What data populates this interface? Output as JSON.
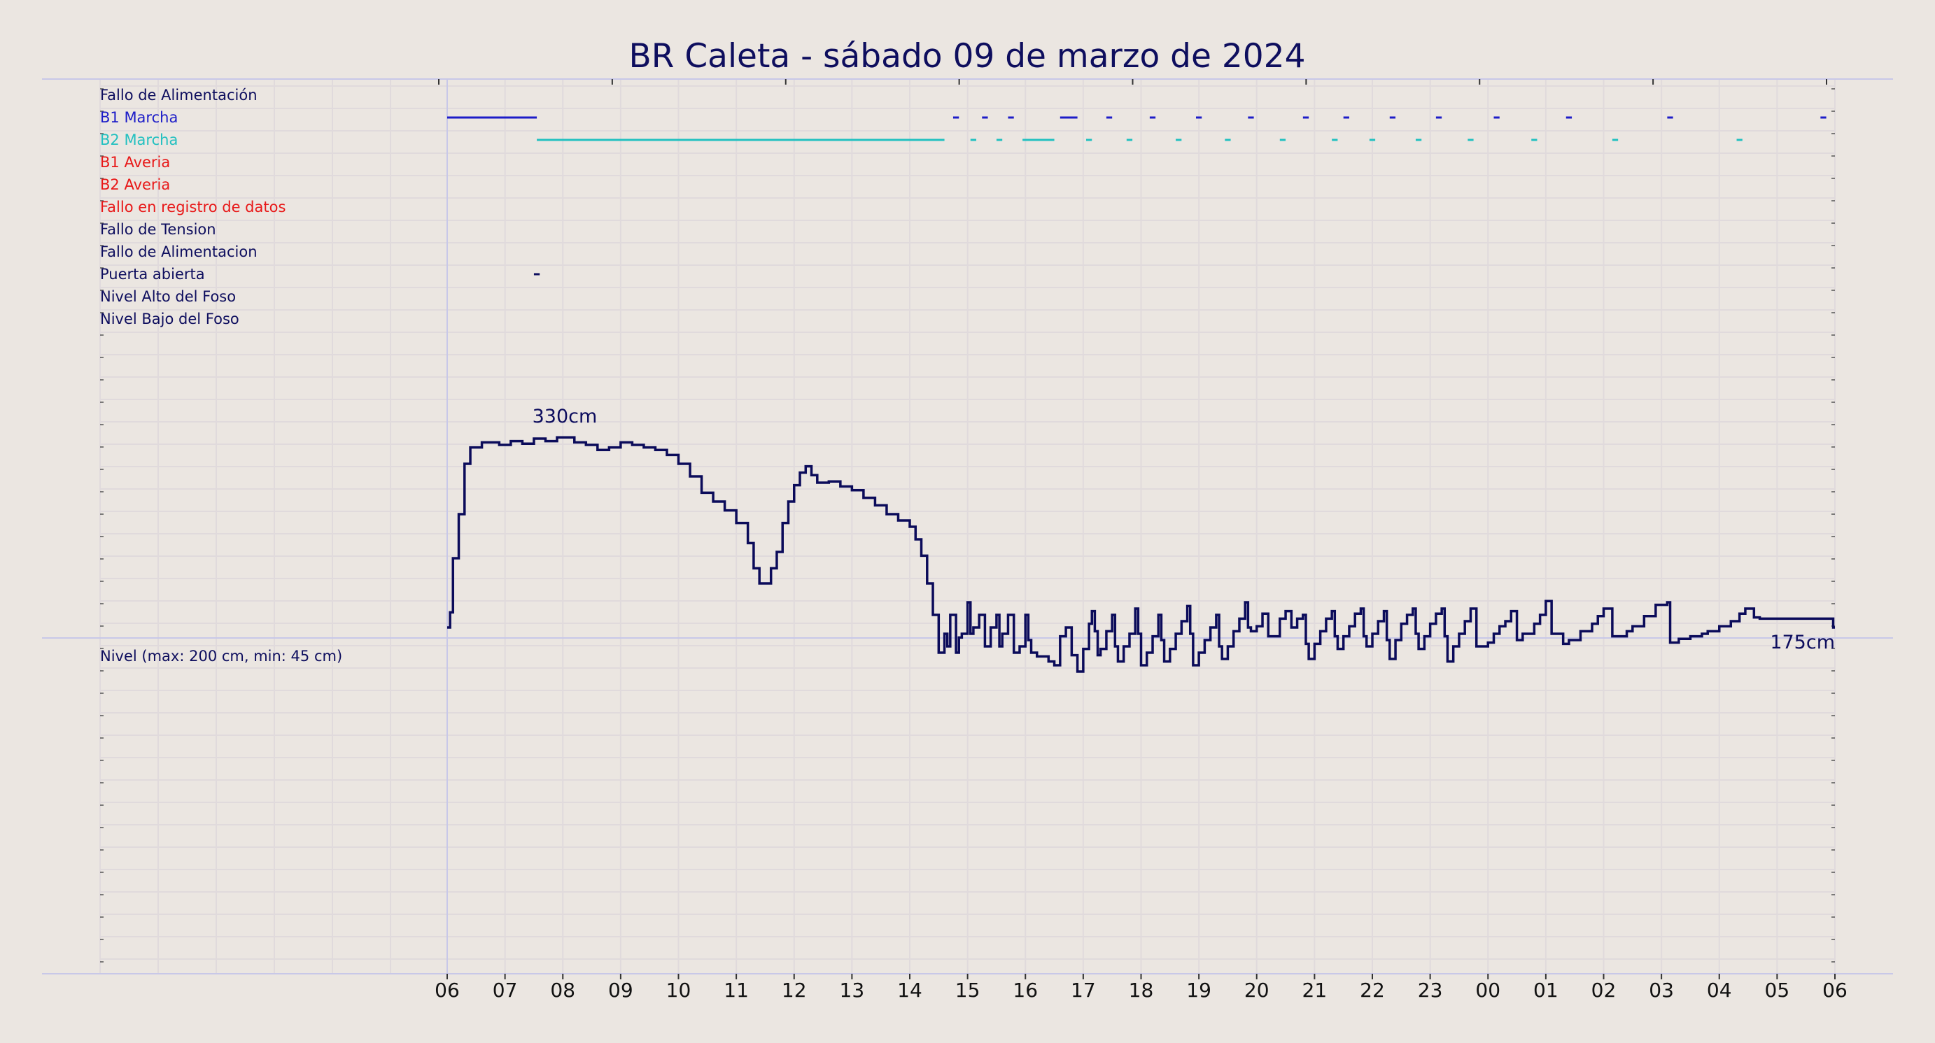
{
  "chart_data": {
    "type": "line",
    "title": "BR Caleta   -   sábado 09 de marzo de 2024",
    "x_ticks": [
      "06",
      "07",
      "08",
      "09",
      "10",
      "11",
      "12",
      "13",
      "14",
      "15",
      "16",
      "17",
      "18",
      "19",
      "20",
      "21",
      "22",
      "23",
      "00",
      "01",
      "02",
      "03",
      "04",
      "05",
      "06"
    ],
    "grid": true,
    "colors": {
      "background": "#ebe6e1",
      "title": "#0e0e5e",
      "b1": "#1c1cc8",
      "b2": "#22c0c0",
      "alarm": "#e81818",
      "level": "#0b0b5a",
      "grid": "#e0dadc",
      "frame": "#c8c8e8"
    },
    "event_rows": [
      {
        "label": "Fallo de Alimentación",
        "color": "#0e0e5e",
        "segments": []
      },
      {
        "label": "B1 Marcha",
        "color": "#1c1cc8",
        "segments": [
          [
            0.0,
            1.55
          ],
          [
            8.75,
            8.85
          ],
          [
            9.25,
            9.35
          ],
          [
            9.7,
            9.8
          ],
          [
            10.6,
            10.9
          ],
          [
            11.4,
            11.5
          ],
          [
            12.15,
            12.25
          ],
          [
            12.95,
            13.05
          ],
          [
            13.85,
            13.95
          ],
          [
            14.8,
            14.9
          ],
          [
            15.5,
            15.6
          ],
          [
            16.3,
            16.4
          ],
          [
            17.1,
            17.2
          ],
          [
            18.1,
            18.2
          ],
          [
            19.35,
            19.45
          ],
          [
            21.1,
            21.2
          ],
          [
            23.75,
            23.85
          ]
        ]
      },
      {
        "label": "B2 Marcha",
        "color": "#22c0c0",
        "segments": [
          [
            1.55,
            8.6
          ],
          [
            9.05,
            9.15
          ],
          [
            9.5,
            9.6
          ],
          [
            9.95,
            10.5
          ],
          [
            11.05,
            11.15
          ],
          [
            11.75,
            11.85
          ],
          [
            12.6,
            12.7
          ],
          [
            13.45,
            13.55
          ],
          [
            14.4,
            14.5
          ],
          [
            15.3,
            15.4
          ],
          [
            15.95,
            16.05
          ],
          [
            16.75,
            16.85
          ],
          [
            17.65,
            17.75
          ],
          [
            18.75,
            18.85
          ],
          [
            20.15,
            20.25
          ],
          [
            22.3,
            22.4
          ]
        ]
      },
      {
        "label": "B1 Averia",
        "color": "#e81818",
        "segments": []
      },
      {
        "label": "B2 Averia",
        "color": "#e81818",
        "segments": []
      },
      {
        "label": "Fallo en registro de datos",
        "color": "#e81818",
        "segments": []
      },
      {
        "label": "Fallo de Tension",
        "color": "#0e0e5e",
        "segments": []
      },
      {
        "label": "Fallo de Alimentacion",
        "color": "#0e0e5e",
        "segments": []
      },
      {
        "label": "Puerta abierta",
        "color": "#0e0e5e",
        "segments": [
          [
            1.5,
            1.6
          ]
        ]
      },
      {
        "label": "Nivel Alto del Foso",
        "color": "#0e0e5e",
        "segments": []
      },
      {
        "label": "Nivel Bajo del Foso",
        "color": "#0e0e5e",
        "segments": []
      }
    ],
    "level": {
      "label": "Nivel (max: 200 cm, min: 45 cm)",
      "y_range_cm": [
        -100,
        400
      ],
      "max_annotation": "330cm",
      "max_value_cm": 330,
      "max_at_hour": 1.5,
      "last_annotation": "175cm",
      "last_value_cm": 175,
      "series": [
        [
          0.0,
          175
        ],
        [
          0.05,
          187
        ],
        [
          0.1,
          230
        ],
        [
          0.2,
          265
        ],
        [
          0.3,
          305
        ],
        [
          0.4,
          318
        ],
        [
          0.6,
          322
        ],
        [
          0.9,
          320
        ],
        [
          1.1,
          323
        ],
        [
          1.3,
          321
        ],
        [
          1.5,
          325
        ],
        [
          1.7,
          323
        ],
        [
          1.9,
          326
        ],
        [
          2.2,
          322
        ],
        [
          2.4,
          320
        ],
        [
          2.6,
          316
        ],
        [
          2.8,
          318
        ],
        [
          3.0,
          322
        ],
        [
          3.2,
          320
        ],
        [
          3.4,
          318
        ],
        [
          3.6,
          316
        ],
        [
          3.8,
          312
        ],
        [
          4.0,
          305
        ],
        [
          4.2,
          295
        ],
        [
          4.4,
          282
        ],
        [
          4.6,
          275
        ],
        [
          4.8,
          268
        ],
        [
          5.0,
          258
        ],
        [
          5.2,
          242
        ],
        [
          5.3,
          222
        ],
        [
          5.4,
          210
        ],
        [
          5.6,
          222
        ],
        [
          5.7,
          235
        ],
        [
          5.8,
          258
        ],
        [
          5.9,
          275
        ],
        [
          6.0,
          288
        ],
        [
          6.1,
          298
        ],
        [
          6.2,
          303
        ],
        [
          6.3,
          296
        ],
        [
          6.4,
          290
        ],
        [
          6.6,
          291
        ],
        [
          6.8,
          287
        ],
        [
          7.0,
          284
        ],
        [
          7.2,
          278
        ],
        [
          7.4,
          272
        ],
        [
          7.6,
          265
        ],
        [
          7.8,
          260
        ],
        [
          8.0,
          255
        ],
        [
          8.1,
          245
        ],
        [
          8.2,
          232
        ],
        [
          8.3,
          210
        ],
        [
          8.4,
          185
        ],
        [
          8.5,
          155
        ],
        [
          8.6,
          170
        ],
        [
          8.65,
          160
        ],
        [
          8.7,
          185
        ],
        [
          8.8,
          155
        ],
        [
          8.85,
          167
        ],
        [
          8.9,
          170
        ],
        [
          9.0,
          195
        ],
        [
          9.05,
          170
        ],
        [
          9.1,
          175
        ],
        [
          9.2,
          185
        ],
        [
          9.3,
          160
        ],
        [
          9.4,
          175
        ],
        [
          9.5,
          185
        ],
        [
          9.55,
          160
        ],
        [
          9.6,
          170
        ],
        [
          9.7,
          185
        ],
        [
          9.8,
          155
        ],
        [
          9.9,
          160
        ],
        [
          10.0,
          185
        ],
        [
          10.05,
          165
        ],
        [
          10.1,
          155
        ],
        [
          10.2,
          152
        ],
        [
          10.4,
          148
        ],
        [
          10.5,
          145
        ],
        [
          10.6,
          168
        ],
        [
          10.7,
          175
        ],
        [
          10.8,
          153
        ],
        [
          10.9,
          140
        ],
        [
          11.0,
          158
        ],
        [
          11.1,
          178
        ],
        [
          11.15,
          188
        ],
        [
          11.2,
          172
        ],
        [
          11.25,
          153
        ],
        [
          11.3,
          158
        ],
        [
          11.4,
          172
        ],
        [
          11.5,
          185
        ],
        [
          11.55,
          160
        ],
        [
          11.6,
          148
        ],
        [
          11.7,
          160
        ],
        [
          11.8,
          170
        ],
        [
          11.9,
          190
        ],
        [
          11.95,
          170
        ],
        [
          12.0,
          145
        ],
        [
          12.1,
          155
        ],
        [
          12.2,
          168
        ],
        [
          12.3,
          185
        ],
        [
          12.35,
          165
        ],
        [
          12.4,
          148
        ],
        [
          12.5,
          158
        ],
        [
          12.6,
          170
        ],
        [
          12.7,
          180
        ],
        [
          12.8,
          192
        ],
        [
          12.85,
          170
        ],
        [
          12.9,
          145
        ],
        [
          13.0,
          155
        ],
        [
          13.1,
          165
        ],
        [
          13.2,
          175
        ],
        [
          13.3,
          185
        ],
        [
          13.35,
          160
        ],
        [
          13.4,
          150
        ],
        [
          13.5,
          160
        ],
        [
          13.6,
          172
        ],
        [
          13.7,
          182
        ],
        [
          13.8,
          195
        ],
        [
          13.85,
          175
        ],
        [
          13.9,
          172
        ],
        [
          14.0,
          176
        ],
        [
          14.1,
          186
        ],
        [
          14.2,
          168
        ],
        [
          14.3,
          168
        ],
        [
          14.4,
          182
        ],
        [
          14.5,
          188
        ],
        [
          14.6,
          175
        ],
        [
          14.7,
          182
        ],
        [
          14.8,
          185
        ],
        [
          14.85,
          162
        ],
        [
          14.9,
          150
        ],
        [
          15.0,
          162
        ],
        [
          15.1,
          172
        ],
        [
          15.2,
          182
        ],
        [
          15.3,
          188
        ],
        [
          15.35,
          168
        ],
        [
          15.4,
          158
        ],
        [
          15.5,
          168
        ],
        [
          15.6,
          176
        ],
        [
          15.7,
          186
        ],
        [
          15.8,
          190
        ],
        [
          15.85,
          168
        ],
        [
          15.9,
          160
        ],
        [
          16.0,
          170
        ],
        [
          16.1,
          180
        ],
        [
          16.2,
          188
        ],
        [
          16.25,
          165
        ],
        [
          16.3,
          150
        ],
        [
          16.4,
          165
        ],
        [
          16.5,
          178
        ],
        [
          16.6,
          185
        ],
        [
          16.7,
          190
        ],
        [
          16.75,
          170
        ],
        [
          16.8,
          158
        ],
        [
          16.9,
          168
        ],
        [
          17.0,
          178
        ],
        [
          17.1,
          186
        ],
        [
          17.2,
          190
        ],
        [
          17.25,
          168
        ],
        [
          17.3,
          148
        ],
        [
          17.4,
          160
        ],
        [
          17.5,
          170
        ],
        [
          17.6,
          180
        ],
        [
          17.7,
          190
        ],
        [
          17.8,
          160
        ],
        [
          18.0,
          163
        ],
        [
          18.1,
          170
        ],
        [
          18.2,
          176
        ],
        [
          18.3,
          180
        ],
        [
          18.4,
          188
        ],
        [
          18.5,
          165
        ],
        [
          18.6,
          170
        ],
        [
          18.8,
          178
        ],
        [
          18.9,
          185
        ],
        [
          19.0,
          196
        ],
        [
          19.1,
          170
        ],
        [
          19.3,
          162
        ],
        [
          19.4,
          165
        ],
        [
          19.6,
          172
        ],
        [
          19.8,
          178
        ],
        [
          19.9,
          184
        ],
        [
          20.0,
          190
        ],
        [
          20.15,
          168
        ],
        [
          20.3,
          168
        ],
        [
          20.4,
          172
        ],
        [
          20.5,
          176
        ],
        [
          20.7,
          184
        ],
        [
          20.9,
          193
        ],
        [
          21.1,
          195
        ],
        [
          21.15,
          163
        ],
        [
          21.3,
          166
        ],
        [
          21.5,
          168
        ],
        [
          21.7,
          170
        ],
        [
          21.8,
          172
        ],
        [
          22.0,
          176
        ],
        [
          22.2,
          180
        ],
        [
          22.35,
          186
        ],
        [
          22.45,
          190
        ],
        [
          22.6,
          183
        ],
        [
          22.7,
          182
        ]
      ]
    },
    "level_x_range_hours": [
      0,
      24
    ]
  }
}
